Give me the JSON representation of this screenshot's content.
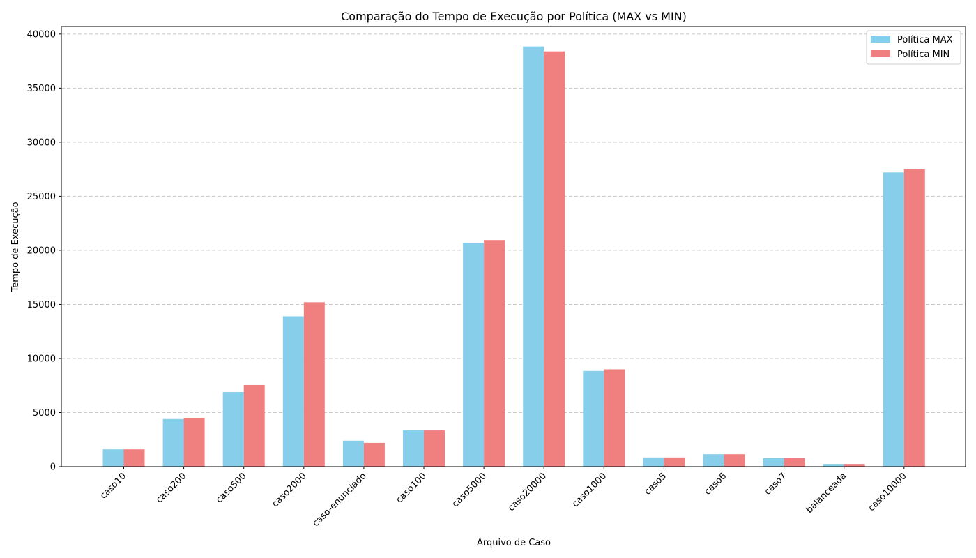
{
  "chart_data": {
    "type": "bar",
    "title": "Comparação do Tempo de Execução por Política (MAX vs MIN)",
    "xlabel": "Arquivo de Caso",
    "ylabel": "Tempo de Execução",
    "categories": [
      "caso10",
      "caso200",
      "caso500",
      "caso2000",
      "caso-enunciado",
      "caso100",
      "caso5000",
      "caso20000",
      "caso1000",
      "caso5",
      "caso6",
      "caso7",
      "balanceada",
      "caso10000"
    ],
    "series": [
      {
        "name": "Política MAX",
        "color": "#87ceeb",
        "values": [
          1600,
          4400,
          6900,
          13900,
          2400,
          3350,
          20700,
          38850,
          8850,
          850,
          1150,
          780,
          250,
          27200
        ]
      },
      {
        "name": "Política MIN",
        "color": "#f08080",
        "values": [
          1600,
          4500,
          7550,
          15200,
          2200,
          3350,
          20950,
          38400,
          9000,
          850,
          1150,
          780,
          250,
          27500
        ]
      }
    ],
    "ylim": [
      0,
      40700
    ],
    "yticks": [
      0,
      5000,
      10000,
      15000,
      20000,
      25000,
      30000,
      35000,
      40000
    ],
    "grid": "y-dashed",
    "legend_position": "top-right"
  }
}
